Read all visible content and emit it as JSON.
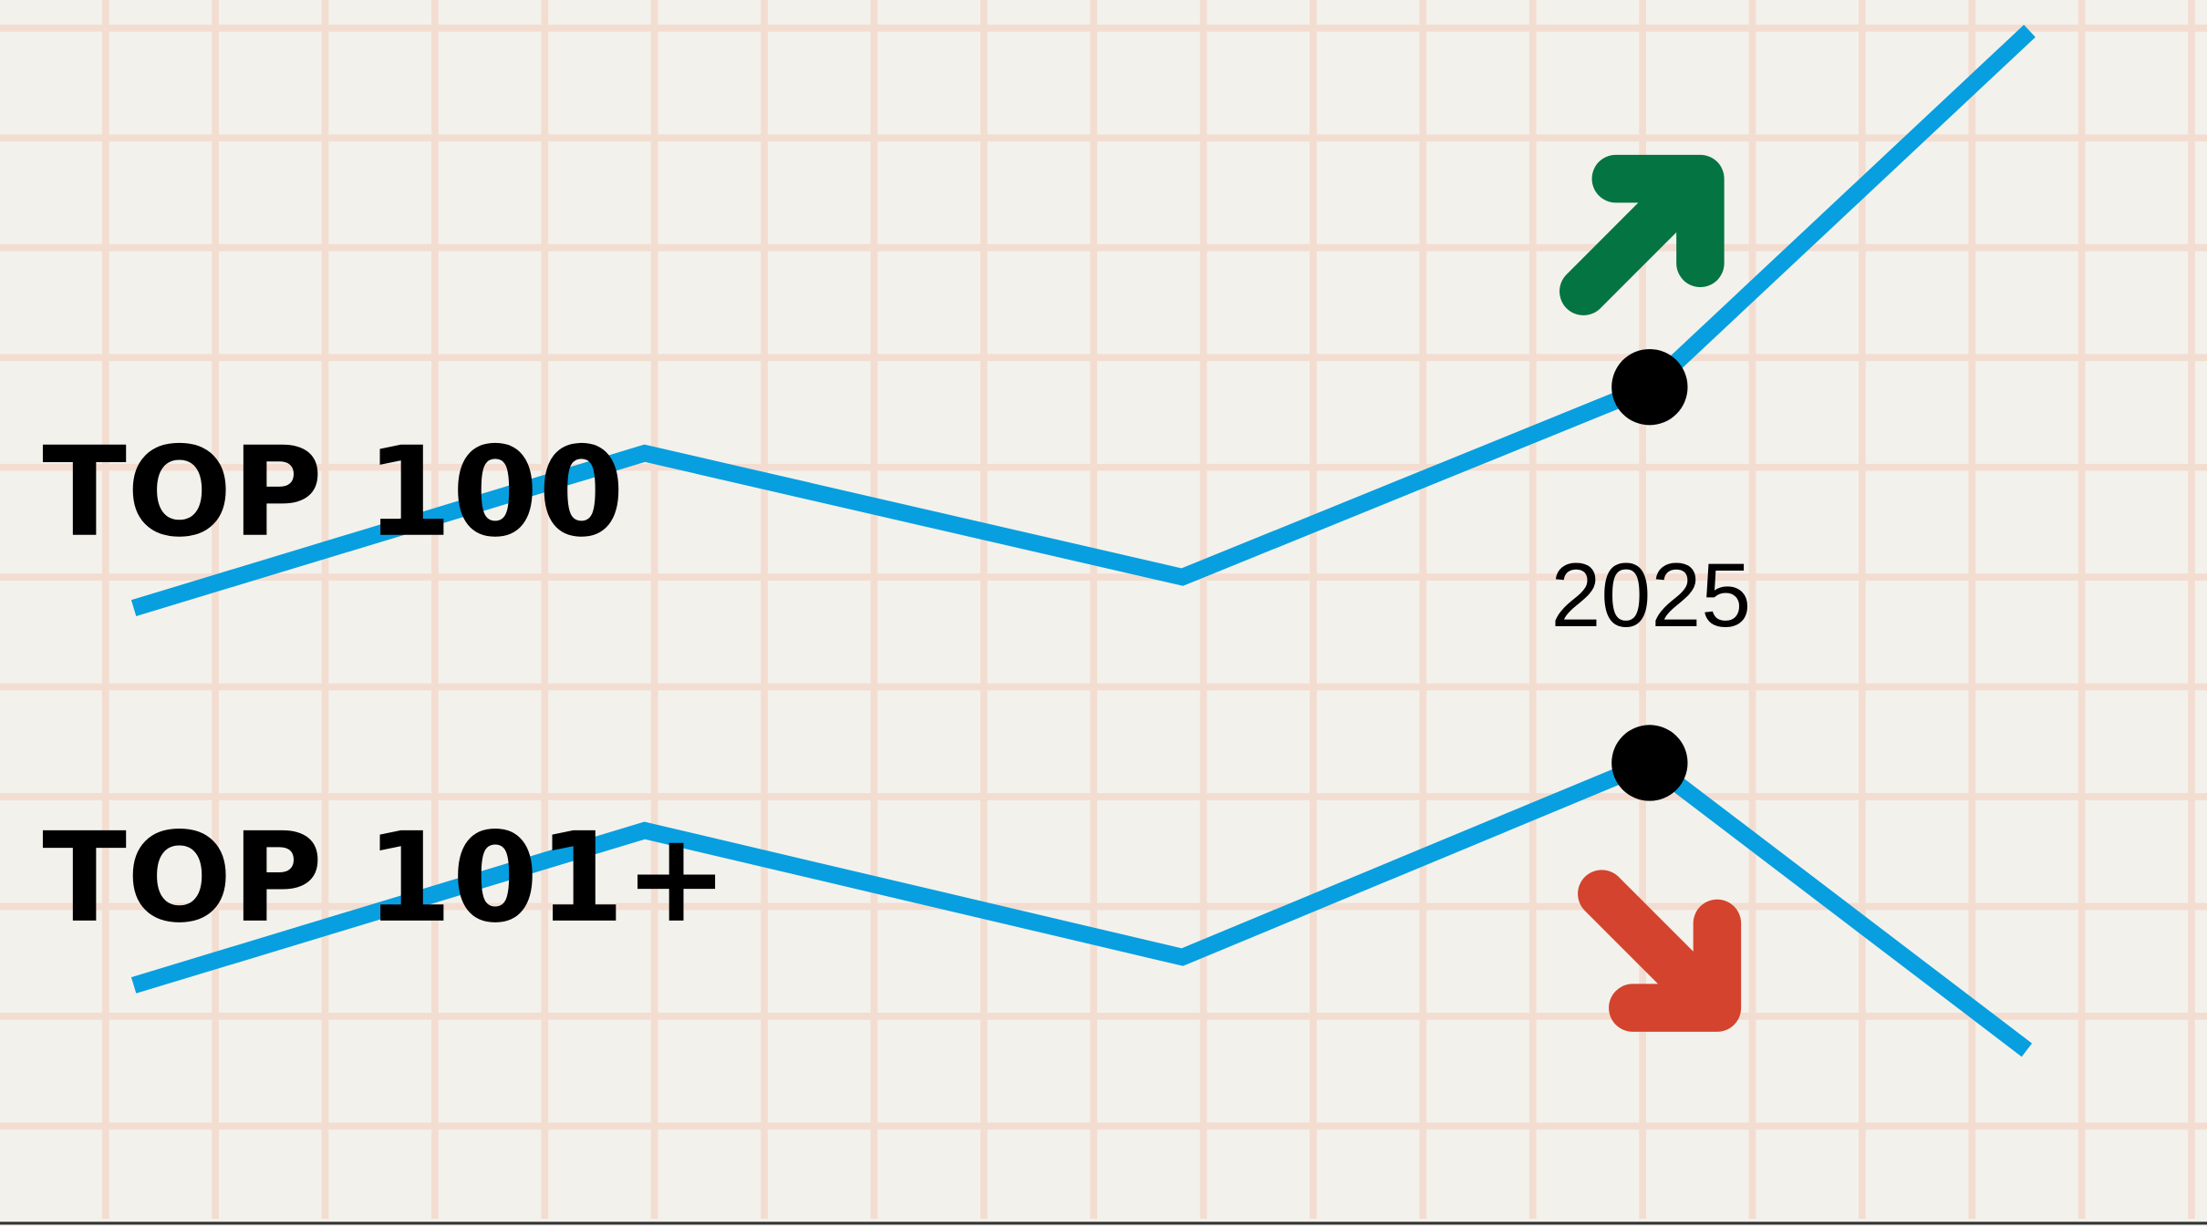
{
  "lines": [
    {
      "label": "TOP 100"
    },
    {
      "label": "TOP 101+"
    }
  ],
  "marker_label": "2025"
}
